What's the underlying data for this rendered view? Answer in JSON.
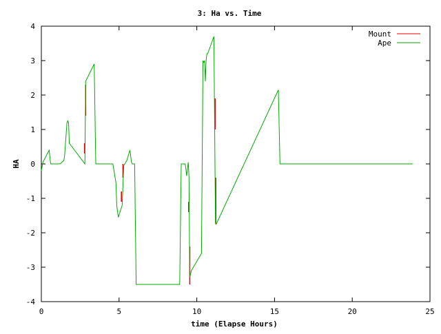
{
  "chart_data": {
    "type": "line",
    "title": "3: Ha vs. Time",
    "xlabel": "time (Elapse Hours)",
    "ylabel": "HA",
    "xlim": [
      0,
      25
    ],
    "ylim": [
      -4,
      4
    ],
    "xticks": [
      "0",
      "5",
      "10",
      "15",
      "20",
      "25"
    ],
    "yticks": [
      "-4",
      "-3",
      "-2",
      "-1",
      "0",
      "1",
      "2",
      "3",
      "4"
    ],
    "grid": false,
    "legend_position": "top-right",
    "series": [
      {
        "name": "Mount",
        "color": "#dd0000",
        "x": [
          2.78,
          2.78,
          2.85,
          2.85,
          5.15,
          5.15,
          5.25,
          5.25,
          9.48,
          9.48,
          9.55,
          9.55,
          11.18,
          11.18,
          11.22,
          11.22
        ],
        "y": [
          0.3,
          0.6,
          1.4,
          2.3,
          -1.1,
          -0.8,
          -0.4,
          0.0,
          -1.1,
          -1.4,
          -2.4,
          -3.5,
          1.0,
          1.9,
          -0.4,
          -1.75
        ],
        "segments": true
      },
      {
        "name": "Ape",
        "color": "#00aa00",
        "x": [
          0,
          0.1,
          0.5,
          0.6,
          1.2,
          1.45,
          1.5,
          1.65,
          1.7,
          1.75,
          1.8,
          2.8,
          2.85,
          3.4,
          3.5,
          4.6,
          4.8,
          4.85,
          4.95,
          5.2,
          5.3,
          5.5,
          5.7,
          5.8,
          5.85,
          6.0,
          6.1,
          8.9,
          9.0,
          9.25,
          9.3,
          9.35,
          9.45,
          9.5,
          9.55,
          9.65,
          10.3,
          10.4,
          10.45,
          10.5,
          10.55,
          10.6,
          10.65,
          10.7,
          11.1,
          11.2,
          11.25,
          15.25,
          15.35,
          23.9
        ],
        "y": [
          -0.2,
          0.05,
          0.4,
          0.0,
          0.0,
          0.1,
          0.25,
          1.2,
          1.25,
          1.2,
          0.6,
          0.0,
          2.4,
          2.9,
          0.0,
          0.0,
          -0.55,
          -1.2,
          -1.55,
          -1.2,
          -0.05,
          0.1,
          0.4,
          0.05,
          0.0,
          0.0,
          -3.5,
          -3.5,
          0.0,
          0.0,
          -0.15,
          -0.35,
          0.05,
          -0.4,
          -3.3,
          -3.1,
          -2.6,
          3.0,
          2.95,
          3.0,
          2.4,
          3.0,
          3.2,
          3.2,
          3.7,
          -1.7,
          -1.75,
          2.15,
          0.0,
          0.0
        ]
      }
    ]
  }
}
